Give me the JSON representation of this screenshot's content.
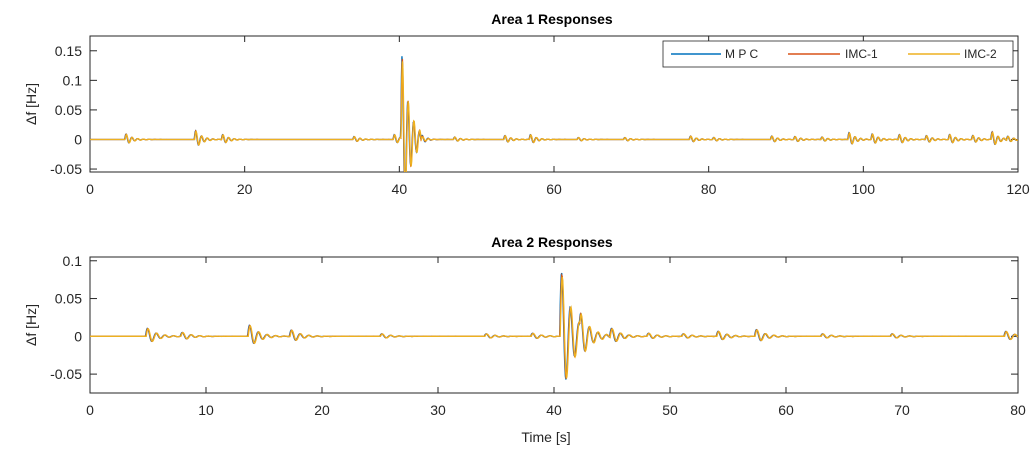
{
  "chart_data": [
    {
      "type": "line",
      "title": "Area 1 Responses",
      "xlabel": "",
      "ylabel": "Δf [Hz]",
      "xlim": [
        0,
        120
      ],
      "ylim": [
        -0.055,
        0.175
      ],
      "xticks": [
        0,
        20,
        40,
        60,
        80,
        100,
        120
      ],
      "xtick_labels": [
        "0",
        "20",
        "40",
        "60",
        "80",
        "100",
        "120"
      ],
      "yticks": [
        -0.05,
        0,
        0.05,
        0.1,
        0.15
      ],
      "ytick_labels": [
        "-0.05",
        "0",
        "0.05",
        "0.1",
        "0.15"
      ],
      "grid": false,
      "legend": "top-right",
      "series": [
        {
          "name": "M P C",
          "color": "#0072bd"
        },
        {
          "name": "IMC-1",
          "color": "#d95319"
        },
        {
          "name": "IMC-2",
          "color": "#edb120"
        }
      ],
      "events": [
        {
          "t": 4.5,
          "a": 0.011
        },
        {
          "t": 13.5,
          "a": 0.018
        },
        {
          "t": 17.0,
          "a": 0.01
        },
        {
          "t": 34.0,
          "a": 0.006
        },
        {
          "t": 39.2,
          "a": 0.01
        },
        {
          "t": 40.2,
          "a": 0.17
        },
        {
          "t": 42.8,
          "a": 0.02
        },
        {
          "t": 47.0,
          "a": 0.005
        },
        {
          "t": 53.5,
          "a": 0.008
        },
        {
          "t": 56.8,
          "a": 0.01
        },
        {
          "t": 63.0,
          "a": 0.004
        },
        {
          "t": 69.0,
          "a": 0.004
        },
        {
          "t": 77.5,
          "a": 0.007
        },
        {
          "t": 80.5,
          "a": 0.004
        },
        {
          "t": 88.0,
          "a": 0.007
        },
        {
          "t": 91.0,
          "a": 0.006
        },
        {
          "t": 94.5,
          "a": 0.005
        },
        {
          "t": 98.0,
          "a": 0.014
        },
        {
          "t": 101.0,
          "a": 0.011
        },
        {
          "t": 104.5,
          "a": 0.01
        },
        {
          "t": 108.0,
          "a": 0.008
        },
        {
          "t": 111.0,
          "a": 0.01
        },
        {
          "t": 114.0,
          "a": 0.008
        },
        {
          "t": 116.5,
          "a": 0.016
        },
        {
          "t": 118.5,
          "a": 0.007
        }
      ]
    },
    {
      "type": "line",
      "title": "Area 2 Responses",
      "xlabel": "Time [s]",
      "ylabel": "Δf [Hz]",
      "xlim": [
        0,
        80
      ],
      "ylim": [
        -0.075,
        0.105
      ],
      "xticks": [
        0,
        10,
        20,
        30,
        40,
        50,
        60,
        70,
        80
      ],
      "xtick_labels": [
        "0",
        "10",
        "20",
        "30",
        "40",
        "50",
        "60",
        "70",
        "80"
      ],
      "yticks": [
        -0.05,
        0,
        0.05,
        0.1
      ],
      "ytick_labels": [
        "-0.05",
        "0",
        "0.05",
        "0.1"
      ],
      "grid": false,
      "series": [
        {
          "name": "M P C",
          "color": "#0072bd"
        },
        {
          "name": "IMC-1",
          "color": "#d95319"
        },
        {
          "name": "IMC-2",
          "color": "#edb120"
        }
      ],
      "events": [
        {
          "t": 4.8,
          "a": 0.013
        },
        {
          "t": 7.8,
          "a": 0.006
        },
        {
          "t": 13.6,
          "a": 0.018
        },
        {
          "t": 17.2,
          "a": 0.01
        },
        {
          "t": 25.0,
          "a": 0.004
        },
        {
          "t": 34.0,
          "a": 0.004
        },
        {
          "t": 38.0,
          "a": 0.005
        },
        {
          "t": 40.5,
          "a": 0.1
        },
        {
          "t": 42.2,
          "a": 0.035
        },
        {
          "t": 44.8,
          "a": 0.014
        },
        {
          "t": 48.0,
          "a": 0.005
        },
        {
          "t": 51.0,
          "a": 0.004
        },
        {
          "t": 54.0,
          "a": 0.008
        },
        {
          "t": 57.3,
          "a": 0.011
        },
        {
          "t": 63.0,
          "a": 0.004
        },
        {
          "t": 69.0,
          "a": 0.004
        },
        {
          "t": 78.8,
          "a": 0.008
        }
      ]
    }
  ]
}
